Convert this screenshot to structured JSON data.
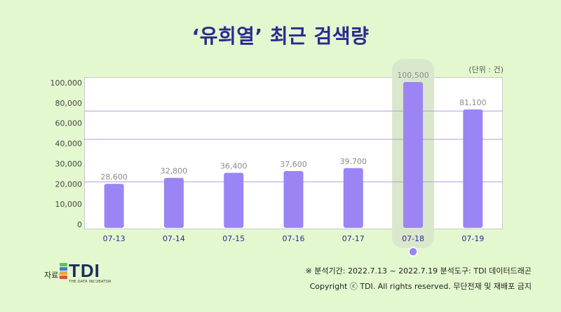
{
  "title": "‘유희열’ 최근 검색량",
  "unit_note": "(단위 : 건)",
  "footer": {
    "source_label": "자료:",
    "logo_text": "TDI",
    "logo_sub": "THE DATA INCUBATOR",
    "analysis_period": "※ 분석기간: 2022.7.13 ~ 2022.7.19   분석도구: TDI 데이터드래곤",
    "copyright": "Copyright ⓒ TDI. All rights reserved. 무단전재 및 재배포 금지"
  },
  "colors": {
    "background": "#e4f8cf",
    "title": "#2b2a8f",
    "bar": "#9b84f3",
    "highlight_band": "#d9e8cc",
    "highlight_dot": "#9b84f3",
    "grid": "#b79be0",
    "category_text": "#2b2a8f",
    "value_text": "#8a8a8a"
  },
  "logo_colors": [
    "#6bbf59",
    "#3e7fd4",
    "#f2a633",
    "#e2513f"
  ],
  "chart_data": {
    "type": "bar",
    "title": "‘유희열’ 최근 검색량",
    "xlabel": "",
    "ylabel": "",
    "categories": [
      "07-13",
      "07-14",
      "07-15",
      "07-16",
      "07-17",
      "07-18",
      "07-19"
    ],
    "values": [
      28600,
      32800,
      36400,
      37600,
      39700,
      100500,
      81100
    ],
    "value_labels": [
      "28,600",
      "32,800",
      "36,400",
      "37,600",
      "39.700",
      "100,500",
      "81,100"
    ],
    "y_tick_labels": [
      "0",
      "10,000",
      "20,000",
      "30,000",
      "40,000",
      "60,000",
      "80,000",
      "100,000"
    ],
    "ylim": [
      0,
      100000
    ],
    "highlight_category": "07-18",
    "grid": true,
    "legend": "none"
  }
}
